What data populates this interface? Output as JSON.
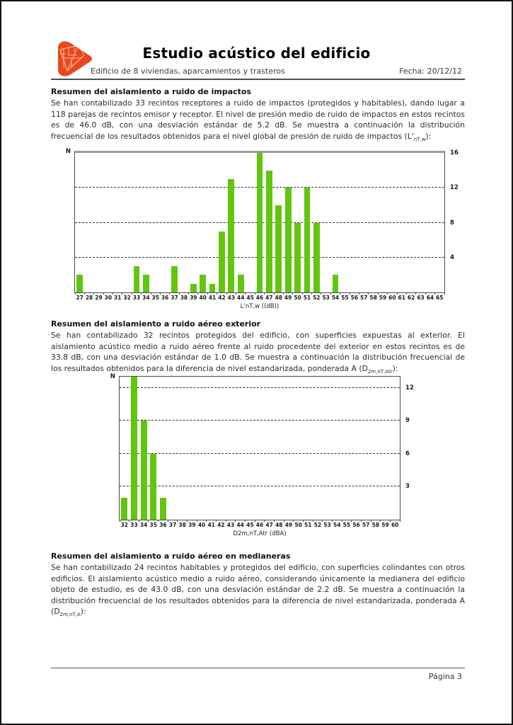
{
  "page": {
    "title": "Estudio acústico del edificio",
    "subtitle": "Edificio de 8 viviendas, aparcamientos y trasteros",
    "date_label": "Fecha: 20/12/12",
    "page_number": "Página 3"
  },
  "sections": [
    {
      "heading": "Resumen del aislamiento a ruido de impactos",
      "body": "Se han contabilizado 33 recintos receptores a ruido de impactos (protegidos y habitables), dando lugar a 118 parejas de recintos emisor y receptor. El nivel de presión medio de ruido de impactos en estos recintos es de 46.0 dB, con una desviación estándar de 5.2 dB. Se muestra a continuación la distribución frecuencial de los resultados obtenidos para el nivel global de presión de ruido de impactos ",
      "formula": {
        "pre": "(L'",
        "sub": "nT,w",
        "post": "):"
      }
    },
    {
      "heading": "Resumen del aislamiento a ruido aéreo exterior",
      "body": "Se han contabilizado 32 recintos protegidos del edificio, con superficies expuestas al exterior. El aislamiento acústico medio a ruido aéreo frente al ruido procedente del exterior en estos recintos es de 33.8 dB, con una desviación estándar de 1.0 dB. Se muestra a continuación la distribución frecuencial de los resultados obtenidos para la diferencia de nivel estandarizada, ponderada A ",
      "formula": {
        "pre": "(D",
        "sub": "2m,nT,Atr",
        "post": "):"
      }
    },
    {
      "heading": "Resumen del aislamiento a ruido aéreo en medianeras",
      "body": "Se han contabilizado 24 recintos habitables y protegidos del edificio, con superficies colindantes con otros edificios. El aislamiento acústico medio a ruido aéreo, considerando únicamente la medianera del edificio objeto de estudio, es de 43.0 dB, con una desviación estándar de 2.2 dB. Se muestra a continuación la distribución frecuencial de los resultados obtenidos para la diferencia de nivel estandarizada, ponderada A ",
      "formula": {
        "pre": "(D",
        "sub": "2m,nT,A",
        "post": "):"
      }
    }
  ],
  "chart_data": [
    {
      "type": "bar",
      "name": "distribucion-ruido-impactos",
      "ylabel": "N",
      "xlabel": "L'nT,w ((dB))",
      "categories": [
        27,
        28,
        29,
        30,
        31,
        32,
        33,
        34,
        35,
        36,
        37,
        38,
        39,
        40,
        41,
        42,
        43,
        44,
        45,
        46,
        47,
        48,
        49,
        50,
        51,
        52,
        53,
        54,
        55,
        56,
        57,
        58,
        59,
        60,
        61,
        62,
        63,
        64,
        65
      ],
      "values": [
        2,
        0,
        0,
        0,
        0,
        0,
        3,
        2,
        0,
        0,
        3,
        0,
        1,
        2,
        1,
        7,
        13,
        2,
        0,
        16,
        14,
        10,
        12,
        8,
        12,
        8,
        0,
        2,
        0,
        0,
        0,
        0,
        0,
        0,
        0,
        0,
        0,
        0,
        0
      ],
      "yticks": [
        4,
        8,
        12,
        16
      ],
      "gridlines": [
        4,
        8,
        12
      ],
      "ymax": 16,
      "grid": "dashed-horizontal",
      "legend_position": "none"
    },
    {
      "type": "bar",
      "name": "distribucion-ruido-aereo-exterior",
      "ylabel": "N",
      "xlabel": "D2m,nT,Atr (dBA)",
      "categories": [
        32,
        33,
        34,
        35,
        36,
        37,
        38,
        39,
        40,
        41,
        42,
        43,
        44,
        45,
        46,
        47,
        48,
        49,
        50,
        51,
        52,
        53,
        54,
        55,
        56,
        57,
        58,
        59,
        60
      ],
      "values": [
        2,
        13,
        9,
        6,
        2,
        0,
        0,
        0,
        0,
        0,
        0,
        0,
        0,
        0,
        0,
        0,
        0,
        0,
        0,
        0,
        0,
        0,
        0,
        0,
        0,
        0,
        0,
        0,
        0
      ],
      "yticks": [
        3,
        6,
        9,
        12
      ],
      "gridlines": [
        3,
        6,
        9,
        12
      ],
      "ymax": 13,
      "grid": "dashed-horizontal",
      "legend_position": "none"
    }
  ],
  "colors": {
    "bar_green": "#61C60D",
    "logo_orange": "#E8481B",
    "accent_text": "#000000"
  }
}
